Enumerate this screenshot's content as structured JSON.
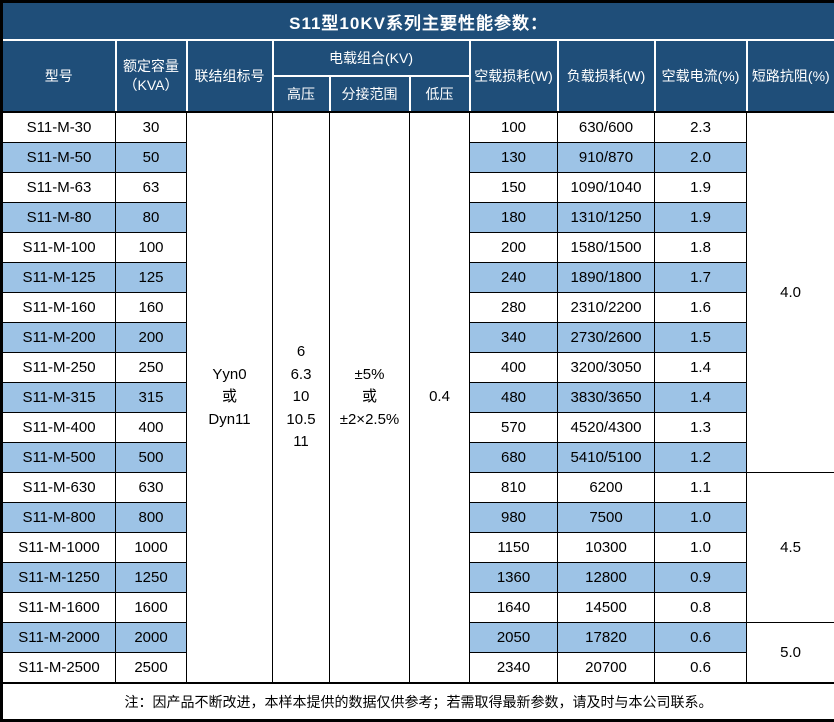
{
  "title": "S11型10KV系列主要性能参数：",
  "colors": {
    "header_bg": "#1F4E79",
    "header_text": "#FFFFFF",
    "stripe_bg": "#9DC3E6",
    "grid_dark": "#000000",
    "grid_light": "#FFFFFF"
  },
  "header": {
    "model": "型号",
    "rated_capacity": "额定容量\n（KVA）",
    "vector_group": "联结组标号",
    "voltage_combo": "电载组合(KV)",
    "hv": "高压",
    "tap_range": "分接范围",
    "lv": "低压",
    "no_load_loss": "空载损耗(W)",
    "load_loss": "负载损耗(W)",
    "no_load_current": "空载电流(%)",
    "impedance": "短路抗阻(%)"
  },
  "merged": {
    "vector_group": "Yyn0\n或\nDyn11",
    "hv": "6\n6.3\n10\n10.5\n11",
    "tap_range": "±5%\n或\n±2×2.5%",
    "lv": "0.4"
  },
  "rows": [
    {
      "model": "S11-M-30",
      "capacity": "30",
      "no_load_loss": "100",
      "load_loss": "630/600",
      "no_load_current": "2.3"
    },
    {
      "model": "S11-M-50",
      "capacity": "50",
      "no_load_loss": "130",
      "load_loss": "910/870",
      "no_load_current": "2.0"
    },
    {
      "model": "S11-M-63",
      "capacity": "63",
      "no_load_loss": "150",
      "load_loss": "1090/1040",
      "no_load_current": "1.9"
    },
    {
      "model": "S11-M-80",
      "capacity": "80",
      "no_load_loss": "180",
      "load_loss": "1310/1250",
      "no_load_current": "1.9"
    },
    {
      "model": "S11-M-100",
      "capacity": "100",
      "no_load_loss": "200",
      "load_loss": "1580/1500",
      "no_load_current": "1.8"
    },
    {
      "model": "S11-M-125",
      "capacity": "125",
      "no_load_loss": "240",
      "load_loss": "1890/1800",
      "no_load_current": "1.7"
    },
    {
      "model": "S11-M-160",
      "capacity": "160",
      "no_load_loss": "280",
      "load_loss": "2310/2200",
      "no_load_current": "1.6"
    },
    {
      "model": "S11-M-200",
      "capacity": "200",
      "no_load_loss": "340",
      "load_loss": "2730/2600",
      "no_load_current": "1.5"
    },
    {
      "model": "S11-M-250",
      "capacity": "250",
      "no_load_loss": "400",
      "load_loss": "3200/3050",
      "no_load_current": "1.4"
    },
    {
      "model": "S11-M-315",
      "capacity": "315",
      "no_load_loss": "480",
      "load_loss": "3830/3650",
      "no_load_current": "1.4"
    },
    {
      "model": "S11-M-400",
      "capacity": "400",
      "no_load_loss": "570",
      "load_loss": "4520/4300",
      "no_load_current": "1.3"
    },
    {
      "model": "S11-M-500",
      "capacity": "500",
      "no_load_loss": "680",
      "load_loss": "5410/5100",
      "no_load_current": "1.2"
    },
    {
      "model": "S11-M-630",
      "capacity": "630",
      "no_load_loss": "810",
      "load_loss": "6200",
      "no_load_current": "1.1"
    },
    {
      "model": "S11-M-800",
      "capacity": "800",
      "no_load_loss": "980",
      "load_loss": "7500",
      "no_load_current": "1.0"
    },
    {
      "model": "S11-M-1000",
      "capacity": "1000",
      "no_load_loss": "1150",
      "load_loss": "10300",
      "no_load_current": "1.0"
    },
    {
      "model": "S11-M-1250",
      "capacity": "1250",
      "no_load_loss": "1360",
      "load_loss": "12800",
      "no_load_current": "0.9"
    },
    {
      "model": "S11-M-1600",
      "capacity": "1600",
      "no_load_loss": "1640",
      "load_loss": "14500",
      "no_load_current": "0.8"
    },
    {
      "model": "S11-M-2000",
      "capacity": "2000",
      "no_load_loss": "2050",
      "load_loss": "17820",
      "no_load_current": "0.6"
    },
    {
      "model": "S11-M-2500",
      "capacity": "2500",
      "no_load_loss": "2340",
      "load_loss": "20700",
      "no_load_current": "0.6"
    }
  ],
  "impedance_groups": [
    {
      "value": "4.0",
      "row_count": 12
    },
    {
      "value": "4.5",
      "row_count": 5
    },
    {
      "value": "5.0",
      "row_count": 2
    }
  ],
  "footer_note": "注：因产品不断改进，本样本提供的数据仅供参考；若需取得最新参数，请及时与本公司联系。"
}
